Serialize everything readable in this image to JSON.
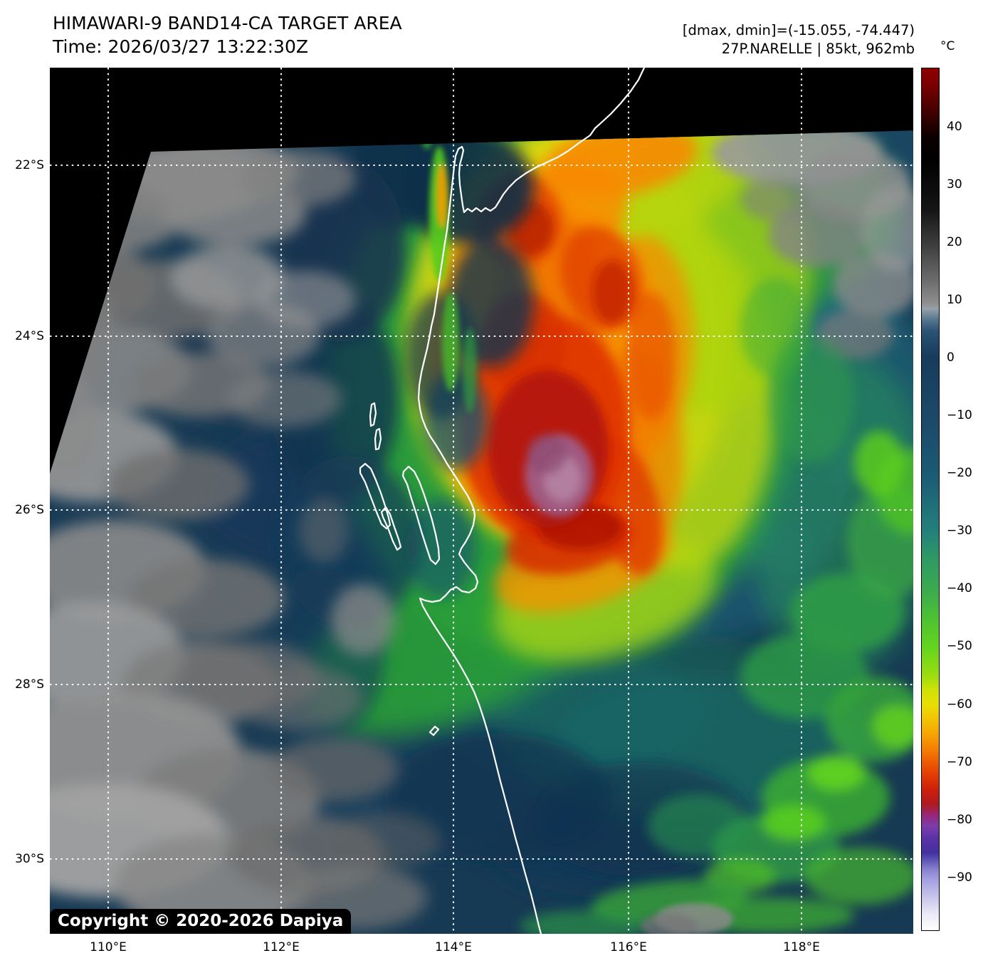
{
  "header": {
    "title": "HIMAWARI-9 BAND14-CA TARGET AREA",
    "time": "Time: 2026/03/27 13:22:30Z",
    "dmax_dmin": "[dmax, dmin]=(-15.055, -74.447)",
    "storm": "27P.NARELLE | 85kt, 962mb"
  },
  "axes": {
    "lat_tick_labels": [
      "22°S",
      "24°S",
      "26°S",
      "28°S",
      "30°S"
    ],
    "lon_tick_labels": [
      "110°E",
      "112°E",
      "114°E",
      "116°E",
      "118°E"
    ]
  },
  "colorbar": {
    "unit_label": "°C",
    "tick_labels": [
      "40",
      "30",
      "20",
      "10",
      "0",
      "−10",
      "−20",
      "−30",
      "−40",
      "−50",
      "−60",
      "−70",
      "−80",
      "−90"
    ]
  },
  "map": {
    "copyright": "Copyright © 2020-2026 Dapiya",
    "colors": {
      "page_bg": "#ffffff",
      "no_data_bg": "#000000",
      "gridline": "#ffffff",
      "coastline": "#ffffff",
      "ocean_base": "#173a54",
      "cold_core_magenta": "#a05c85",
      "deep_convection_red": "#e03506",
      "low_cloud_gray": "#8f8f8f"
    }
  }
}
